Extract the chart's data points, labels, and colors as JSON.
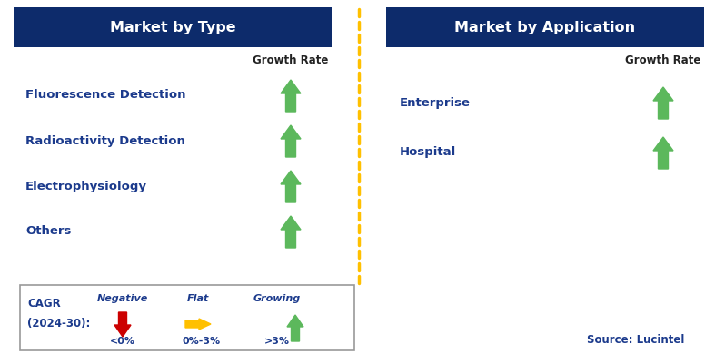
{
  "title_left": "Market by Type",
  "title_right": "Market by Application",
  "header_bg_color": "#0D2B6B",
  "header_text_color": "#FFFFFF",
  "label_color": "#1B3A8C",
  "growth_rate_color": "#222222",
  "items_left": [
    "Fluorescence Detection",
    "Radioactivity Detection",
    "Electrophysiology",
    "Others"
  ],
  "items_right": [
    "Enterprise",
    "Hospital"
  ],
  "arrow_color_green": "#5CB85C",
  "arrow_color_red": "#CC0000",
  "arrow_color_yellow": "#FFC000",
  "dashed_line_color": "#FFC000",
  "legend_label1": "Negative",
  "legend_label2": "Flat",
  "legend_label3": "Growing",
  "legend_range1": "<0%",
  "legend_range2": "0%-3%",
  "legend_range3": ">3%",
  "cagr_line1": "CAGR",
  "cagr_line2": "(2024-30):",
  "source_text": "Source: Lucintel",
  "growth_rate_text": "Growth Rate",
  "bg_color": "#FFFFFF",
  "fig_width": 7.87,
  "fig_height": 4.01,
  "dpi": 100
}
